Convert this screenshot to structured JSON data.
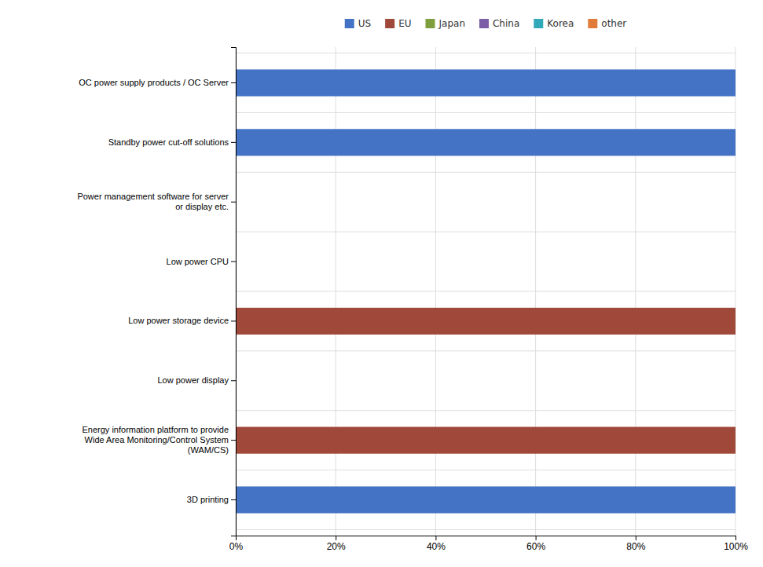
{
  "chart_data": {
    "type": "bar",
    "orientation": "horizontal",
    "categories": [
      "OC power supply products / OC Server",
      "Standby power cut-off solutions",
      "Power management software for server\nor display etc.",
      "Low power CPU",
      "Low power storage device",
      "Low power display",
      "Energy information platform to provide\nWide Area Monitoring/Control System\n(WAM/CS)",
      "3D printing"
    ],
    "series": [
      {
        "name": "US",
        "color": "#4472C4",
        "values": [
          1.0,
          1.0,
          0.0,
          0.0,
          0.0,
          0.0,
          0.0,
          1.0
        ]
      },
      {
        "name": "EU",
        "color": "#A0483A",
        "values": [
          0.0,
          0.0,
          0.0,
          0.0,
          1.0,
          0.0,
          1.0,
          0.0
        ]
      },
      {
        "name": "Japan",
        "color": "#7F9F3F",
        "values": [
          0.0,
          0.0,
          0.0,
          0.0,
          0.0,
          0.0,
          0.0,
          0.0
        ]
      },
      {
        "name": "China",
        "color": "#7B5EA7",
        "values": [
          0.0,
          0.0,
          0.0,
          0.0,
          0.0,
          0.0,
          0.0,
          0.0
        ]
      },
      {
        "name": "Korea",
        "color": "#31A9B8",
        "values": [
          0.0,
          0.0,
          0.0,
          0.0,
          0.0,
          0.0,
          0.0,
          0.0
        ]
      },
      {
        "name": "other",
        "color": "#E07B39",
        "values": [
          0.0,
          0.0,
          0.0,
          0.0,
          0.0,
          0.0,
          0.0,
          0.0
        ]
      }
    ],
    "xlim": [
      0.0,
      1.0
    ],
    "xticks": [
      {
        "value": 0.0,
        "label": "0%"
      },
      {
        "value": 0.2,
        "label": "20%"
      },
      {
        "value": 0.4,
        "label": "40%"
      },
      {
        "value": 0.6,
        "label": "60%"
      },
      {
        "value": 0.8,
        "label": "80%"
      },
      {
        "value": 1.0,
        "label": "100%"
      }
    ],
    "grid": true,
    "legend": "top"
  }
}
